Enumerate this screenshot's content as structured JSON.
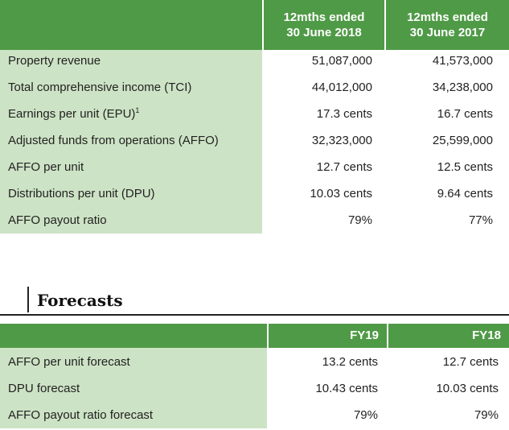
{
  "results": {
    "headers": [
      {
        "line1": "12mths ended",
        "line2": "30 June 2018"
      },
      {
        "line1": "12mths ended",
        "line2": "30 June 2017"
      }
    ],
    "rows": [
      {
        "label": "Property revenue",
        "sup": "",
        "v2018": "51,087,000",
        "v2017": "41,573,000"
      },
      {
        "label": "Total comprehensive income (TCI)",
        "sup": "",
        "v2018": "44,012,000",
        "v2017": "34,238,000"
      },
      {
        "label": "Earnings per unit (EPU)",
        "sup": "1",
        "v2018": "17.3 cents",
        "v2017": "16.7 cents"
      },
      {
        "label": "Adjusted funds from operations (AFFO)",
        "sup": "",
        "v2018": "32,323,000",
        "v2017": "25,599,000"
      },
      {
        "label": "AFFO per unit",
        "sup": "",
        "v2018": "12.7 cents",
        "v2017": "12.5 cents"
      },
      {
        "label": "Distributions per unit (DPU)",
        "sup": "",
        "v2018": "10.03 cents",
        "v2017": "9.64 cents"
      },
      {
        "label": "AFFO payout ratio",
        "sup": "",
        "v2018": "79%",
        "v2017": "77%"
      }
    ]
  },
  "forecasts": {
    "title": "Forecasts",
    "headers": [
      "FY19",
      "FY18"
    ],
    "rows": [
      {
        "label": "AFFO per unit forecast",
        "fy19": "13.2 cents",
        "fy18": "12.7 cents"
      },
      {
        "label": "DPU forecast",
        "fy19": "10.43 cents",
        "fy18": "10.03 cents"
      },
      {
        "label": "AFFO payout ratio forecast",
        "fy19": "79%",
        "fy18": "79%"
      }
    ]
  },
  "colors": {
    "header_green": "#4f9a46",
    "label_bg_green": "#cde3c5",
    "text": "#222222"
  }
}
